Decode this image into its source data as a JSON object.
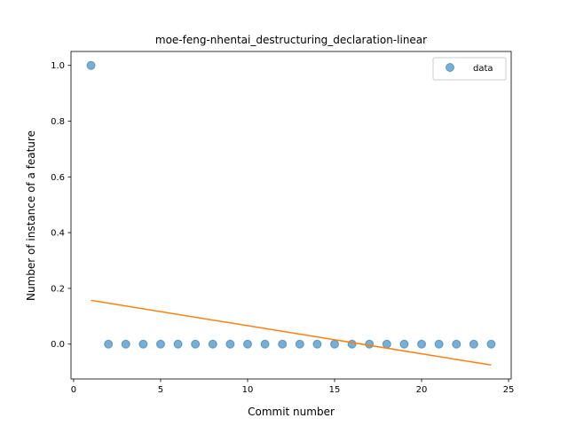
{
  "chart_data": {
    "type": "scatter",
    "title": "moe-feng-nhentai_destructuring_declaration-linear",
    "xlabel": "Commit number",
    "ylabel": "Number of instance of a feature",
    "xlim": [
      -0.15,
      25.15
    ],
    "ylim": [
      -0.125,
      1.05
    ],
    "xticks": [
      0,
      5,
      10,
      15,
      20,
      25
    ],
    "yticks": [
      0.0,
      0.2,
      0.4,
      0.6,
      0.8,
      1.0
    ],
    "grid": false,
    "legend_position": "top-right",
    "series": [
      {
        "name": "data",
        "kind": "scatter",
        "color": "#1f77b4",
        "x": [
          1,
          2,
          3,
          4,
          5,
          6,
          7,
          8,
          9,
          10,
          11,
          12,
          13,
          14,
          15,
          16,
          17,
          18,
          19,
          20,
          21,
          22,
          23,
          24
        ],
        "y": [
          1.0,
          0,
          0,
          0,
          0,
          0,
          0,
          0,
          0,
          0,
          0,
          0,
          0,
          0,
          0,
          0,
          0,
          0,
          0,
          0,
          0,
          0,
          0,
          0
        ]
      },
      {
        "kind": "line",
        "color": "#ff7f0e",
        "x": [
          1,
          24
        ],
        "y": [
          0.157,
          -0.075
        ]
      }
    ]
  }
}
